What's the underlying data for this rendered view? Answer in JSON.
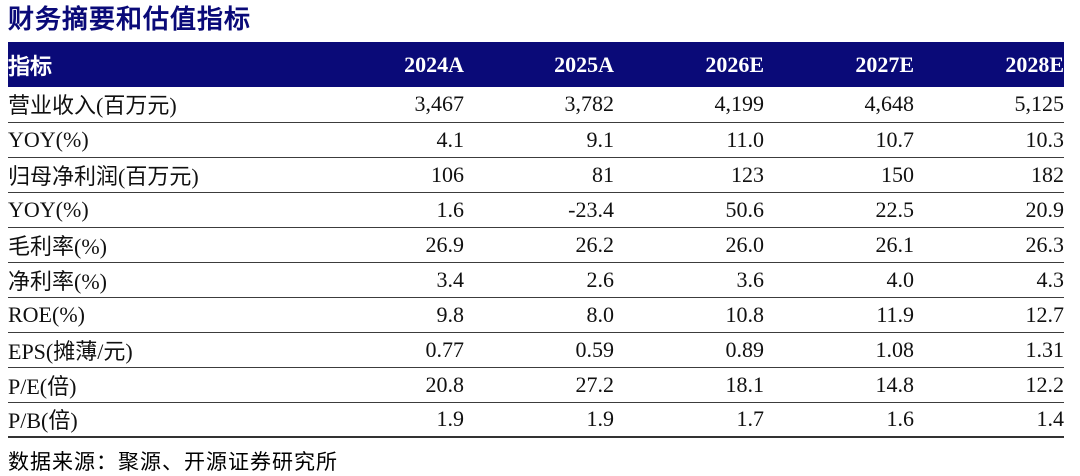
{
  "title": "财务摘要和估值指标",
  "colors": {
    "header_bg": "#0a0a78",
    "header_text": "#ffffff",
    "title_text": "#0a0a78",
    "row_border": "#3c3c3c"
  },
  "table": {
    "columns": [
      "指标",
      "2024A",
      "2025A",
      "2026E",
      "2027E",
      "2028E"
    ],
    "rows": [
      {
        "label": "营业收入(百万元)",
        "values": [
          "3,467",
          "3,782",
          "4,199",
          "4,648",
          "5,125"
        ]
      },
      {
        "label": "YOY(%)",
        "values": [
          "4.1",
          "9.1",
          "11.0",
          "10.7",
          "10.3"
        ]
      },
      {
        "label": "归母净利润(百万元)",
        "values": [
          "106",
          "81",
          "123",
          "150",
          "182"
        ]
      },
      {
        "label": "YOY(%)",
        "values": [
          "1.6",
          "-23.4",
          "50.6",
          "22.5",
          "20.9"
        ]
      },
      {
        "label": "毛利率(%)",
        "values": [
          "26.9",
          "26.2",
          "26.0",
          "26.1",
          "26.3"
        ]
      },
      {
        "label": "净利率(%)",
        "values": [
          "3.4",
          "2.6",
          "3.6",
          "4.0",
          "4.3"
        ]
      },
      {
        "label": "ROE(%)",
        "values": [
          "9.8",
          "8.0",
          "10.8",
          "11.9",
          "12.7"
        ]
      },
      {
        "label": "EPS(摊薄/元)",
        "values": [
          "0.77",
          "0.59",
          "0.89",
          "1.08",
          "1.31"
        ]
      },
      {
        "label": "P/E(倍)",
        "values": [
          "20.8",
          "27.2",
          "18.1",
          "14.8",
          "12.2"
        ]
      },
      {
        "label": "P/B(倍)",
        "values": [
          "1.9",
          "1.9",
          "1.7",
          "1.6",
          "1.4"
        ]
      }
    ]
  },
  "source": "数据来源：聚源、开源证券研究所"
}
